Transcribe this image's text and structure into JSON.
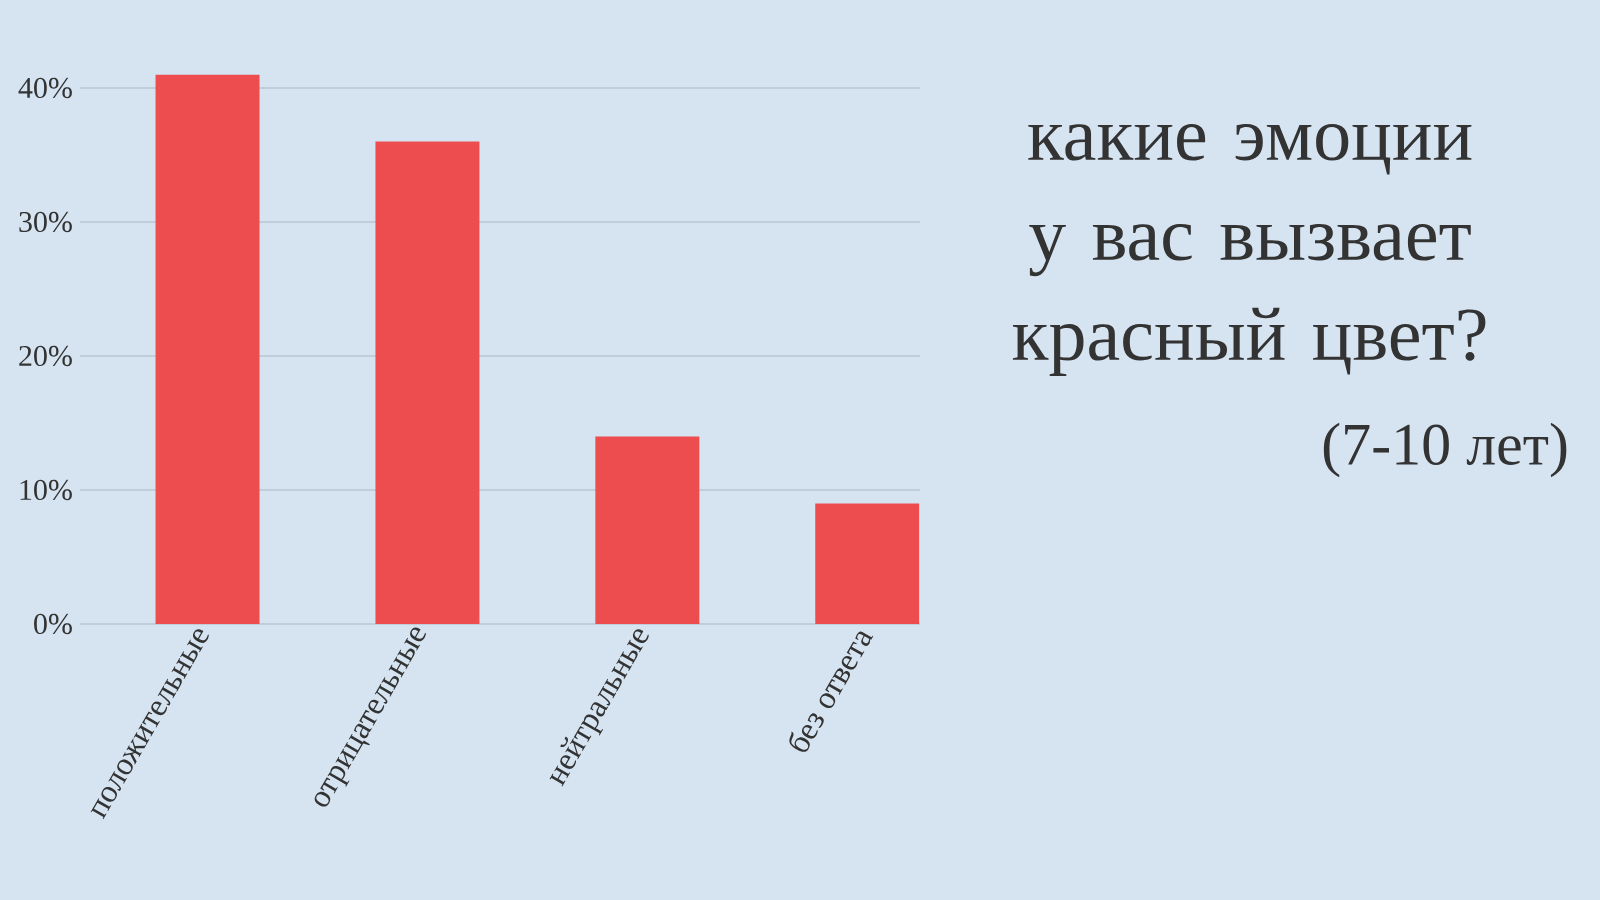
{
  "chart_data": {
    "type": "bar",
    "title": "какие эмоции у вас вызвает красный цвет?",
    "subtitle": "(7-10 лет)",
    "categories": [
      "положительные",
      "отрицательные",
      "нейтральные",
      "без ответа"
    ],
    "values": [
      41,
      36,
      14,
      9
    ],
    "color": "#ee4d50",
    "ylim": [
      0,
      41
    ],
    "yticks": [
      {
        "value": 0,
        "label": "0%"
      },
      {
        "value": 10,
        "label": "10%"
      },
      {
        "value": 20,
        "label": "20%"
      },
      {
        "value": 30,
        "label": "30%"
      },
      {
        "value": 40,
        "label": "40%"
      }
    ],
    "grid": "y"
  }
}
